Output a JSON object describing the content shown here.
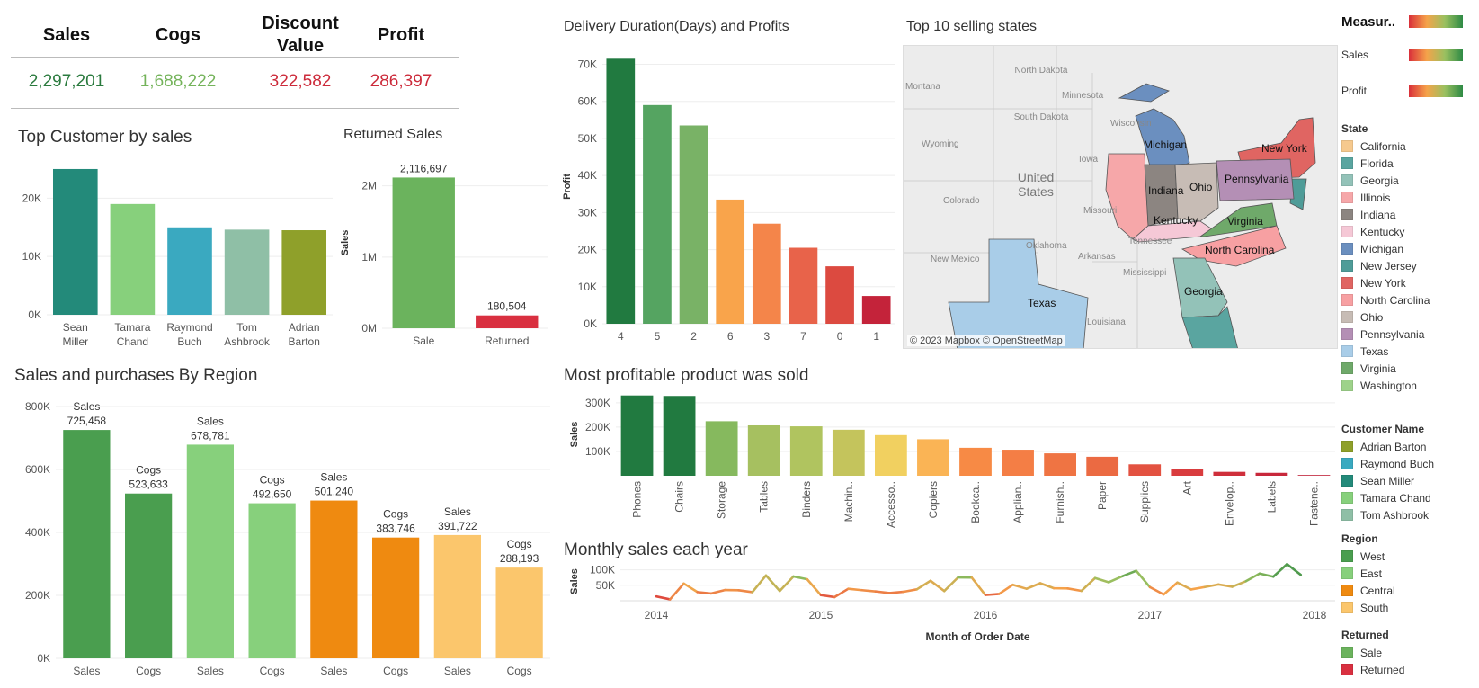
{
  "kpis": [
    {
      "label": "Sales",
      "value": "2,297,201",
      "color": "#2a7a3e"
    },
    {
      "label": "Cogs",
      "value": "1,688,222",
      "color": "#74b35a"
    },
    {
      "label": "Discount Value",
      "value": "322,582",
      "color": "#cc2a3a"
    },
    {
      "label": "Profit",
      "value": "286,397",
      "color": "#cc2a3a"
    }
  ],
  "titles": {
    "top_customer": "Top Customer by  sales",
    "returned": "Returned Sales",
    "delivery": "Delivery Duration(Days) and Profits",
    "top_states": "Top 10 selling states",
    "region": "Sales and purchases By Region",
    "product": "Most profitable product was sold",
    "monthly": "Monthly sales each year"
  },
  "map": {
    "credit": "© 2023 Mapbox © OpenStreetMap",
    "state_labels": [
      "Michigan",
      "New York",
      "Indiana",
      "Ohio",
      "Pennsylvania",
      "Kentucky",
      "Virginia",
      "North Carolina",
      "Georgia",
      "Texas"
    ],
    "bg_labels": [
      "North Dakota",
      "Minnesota",
      "Wisconsin",
      "South Dakota",
      "Wyoming",
      "United States",
      "Iowa",
      "Colorado",
      "Missouri",
      "Oklahoma",
      "New Mexico",
      "Arkansas",
      "Tennessee",
      "Mississippi",
      "Louisiana",
      "Montana"
    ]
  },
  "legend": {
    "measure_title": "Measur..",
    "gradient_labels": [
      "Sales",
      "Profit"
    ],
    "state_title": "State",
    "states": [
      {
        "name": "California",
        "color": "#f6c98e"
      },
      {
        "name": "Florida",
        "color": "#5aa5a0"
      },
      {
        "name": "Georgia",
        "color": "#93c2b8"
      },
      {
        "name": "Illinois",
        "color": "#f6a7a9"
      },
      {
        "name": "Indiana",
        "color": "#8c8581"
      },
      {
        "name": "Kentucky",
        "color": "#f5c8d6"
      },
      {
        "name": "Michigan",
        "color": "#6b8fbf"
      },
      {
        "name": "New Jersey",
        "color": "#4f9c98"
      },
      {
        "name": "New York",
        "color": "#e06562"
      },
      {
        "name": "North Carolina",
        "color": "#f7a0a2"
      },
      {
        "name": "Ohio",
        "color": "#c7bcb5"
      },
      {
        "name": "Pennsylvania",
        "color": "#b48fb5"
      },
      {
        "name": "Texas",
        "color": "#a9cde8"
      },
      {
        "name": "Virginia",
        "color": "#6fa96a"
      },
      {
        "name": "Washington",
        "color": "#9ed28a"
      }
    ],
    "customer_title": "Customer Name",
    "customers": [
      {
        "name": "Adrian Barton",
        "color": "#8fa02a"
      },
      {
        "name": "Raymond Buch",
        "color": "#3aa9c0"
      },
      {
        "name": "Sean Miller",
        "color": "#238a7a"
      },
      {
        "name": "Tamara Chand",
        "color": "#87d07c"
      },
      {
        "name": "Tom Ashbrook",
        "color": "#8fbfa6"
      }
    ],
    "region_title": "Region",
    "regions": [
      {
        "name": "West",
        "color": "#4a9e4f"
      },
      {
        "name": "East",
        "color": "#87d07c"
      },
      {
        "name": "Central",
        "color": "#ef8a10"
      },
      {
        "name": "South",
        "color": "#fbc66c"
      }
    ],
    "returned_title": "Returned",
    "returned": [
      {
        "name": "Sale",
        "color": "#6bb35d"
      },
      {
        "name": "Returned",
        "color": "#d93040"
      }
    ]
  },
  "chart_data": [
    {
      "id": "top_customer",
      "type": "bar",
      "title": "Top Customer by  sales",
      "categories": [
        "Sean Miller",
        "Tamara Chand",
        "Raymond Buch",
        "Tom Ashbrook",
        "Adrian Barton"
      ],
      "values": [
        25000,
        19000,
        15000,
        14600,
        14500
      ],
      "colors": [
        "#238a7a",
        "#87d07c",
        "#3aa9c0",
        "#8fbfa6",
        "#8fa02a"
      ],
      "yticks": [
        "0K",
        "10K",
        "20K"
      ],
      "ylim": [
        0,
        27000
      ]
    },
    {
      "id": "returned",
      "type": "bar",
      "title": "Returned Sales",
      "categories": [
        "Sale",
        "Returned"
      ],
      "values": [
        2116697,
        180504
      ],
      "labels": [
        "2,116,697",
        "180,504"
      ],
      "colors": [
        "#6bb35d",
        "#d93040"
      ],
      "ylabel": "Sales",
      "yticks": [
        "0M",
        "1M",
        "2M"
      ],
      "ylim": [
        0,
        2400000
      ]
    },
    {
      "id": "delivery",
      "type": "bar",
      "title": "Delivery Duration(Days) and Profits",
      "categories": [
        "4",
        "5",
        "2",
        "6",
        "3",
        "7",
        "0",
        "1"
      ],
      "values": [
        71500,
        59000,
        53500,
        33500,
        27000,
        20500,
        15500,
        7500
      ],
      "colors": [
        "#217a40",
        "#55a461",
        "#79b266",
        "#f9a44b",
        "#f4854a",
        "#e8634a",
        "#dc4a40",
        "#c4233a"
      ],
      "ylabel": "Profit",
      "yticks": [
        "0K",
        "10K",
        "20K",
        "30K",
        "40K",
        "50K",
        "60K",
        "70K"
      ],
      "ylim": [
        0,
        74000
      ]
    },
    {
      "id": "region",
      "type": "bar",
      "title": "Sales and purchases By Region",
      "categories": [
        "Sales",
        "Cogs",
        "Sales",
        "Cogs",
        "Sales",
        "Cogs",
        "Sales",
        "Cogs"
      ],
      "values": [
        725458,
        523633,
        678781,
        492650,
        501240,
        383746,
        391722,
        288193
      ],
      "labels": [
        "725,458",
        "523,633",
        "678,781",
        "492,650",
        "501,240",
        "383,746",
        "391,722",
        "288,193"
      ],
      "colors": [
        "#4a9e4f",
        "#4a9e4f",
        "#87d07c",
        "#87d07c",
        "#ef8a10",
        "#ef8a10",
        "#fbc66c",
        "#fbc66c"
      ],
      "yticks": [
        "0K",
        "200K",
        "400K",
        "600K",
        "800K"
      ],
      "ylim": [
        0,
        820000
      ]
    },
    {
      "id": "product",
      "type": "bar",
      "title": "Most profitable product was sold",
      "categories": [
        "Phones",
        "Chairs",
        "Storage",
        "Tables",
        "Binders",
        "Machin..",
        "Accesso..",
        "Copiers",
        "Bookca..",
        "Applian..",
        "Furnish..",
        "Paper",
        "Supplies",
        "Art",
        "Envelop..",
        "Labels",
        "Fastene.."
      ],
      "values": [
        330000,
        328000,
        224000,
        207000,
        203000,
        189000,
        167000,
        150000,
        115000,
        107000,
        92000,
        78000,
        47000,
        27000,
        16000,
        12000,
        3000
      ],
      "colors": [
        "#217a40",
        "#217a40",
        "#86b95e",
        "#a6c060",
        "#b0c45f",
        "#c4c45c",
        "#f1d060",
        "#fab455",
        "#f78a45",
        "#f47e45",
        "#ef7443",
        "#eb6a42",
        "#e35241",
        "#d93c3e",
        "#cf2f3b",
        "#c8283b",
        "#c0233a"
      ],
      "ylabel": "Sales",
      "yticks": [
        "100K",
        "200K",
        "300K"
      ],
      "ylim": [
        0,
        340000
      ]
    },
    {
      "id": "monthly",
      "type": "line",
      "title": "Monthly sales each year",
      "x": [
        "2014-01",
        "2014-02",
        "2014-03",
        "2014-04",
        "2014-05",
        "2014-06",
        "2014-07",
        "2014-08",
        "2014-09",
        "2014-10",
        "2014-11",
        "2014-12",
        "2015-01",
        "2015-02",
        "2015-03",
        "2015-04",
        "2015-05",
        "2015-06",
        "2015-07",
        "2015-08",
        "2015-09",
        "2015-10",
        "2015-11",
        "2015-12",
        "2016-01",
        "2016-02",
        "2016-03",
        "2016-04",
        "2016-05",
        "2016-06",
        "2016-07",
        "2016-08",
        "2016-09",
        "2016-10",
        "2016-11",
        "2016-12",
        "2017-01",
        "2017-02",
        "2017-03",
        "2017-04",
        "2017-05",
        "2017-06",
        "2017-07",
        "2017-08",
        "2017-09",
        "2017-10",
        "2017-11",
        "2017-12"
      ],
      "values": [
        14000,
        4500,
        55700,
        28000,
        23600,
        34600,
        33900,
        27900,
        81800,
        31500,
        78600,
        69500,
        18200,
        11900,
        38700,
        34200,
        30100,
        24800,
        28800,
        36900,
        64600,
        31400,
        75200,
        74900,
        18500,
        22000,
        51700,
        38700,
        56700,
        40300,
        39800,
        31900,
        73400,
        59700,
        79400,
        96900,
        43900,
        20300,
        58900,
        36500,
        44300,
        52700,
        45300,
        63100,
        87900,
        77800,
        118400,
        83800
      ],
      "ylabel": "Sales",
      "xlabel": "Month of Order Date",
      "xticks": [
        "2014",
        "2015",
        "2016",
        "2017",
        "2018"
      ],
      "yticks": [
        "50K",
        "100K"
      ],
      "ylim": [
        0,
        125000
      ]
    }
  ]
}
